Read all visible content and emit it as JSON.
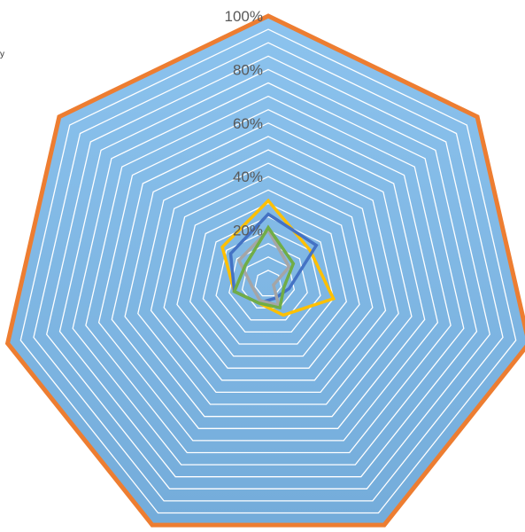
{
  "chart_data": {
    "type": "radar",
    "axes_count": 7,
    "rmax": 100,
    "grid_step": 5,
    "tick_labels": [
      "20%",
      "40%",
      "60%",
      "80%",
      "100%"
    ],
    "tick_values": [
      20,
      40,
      60,
      80,
      100
    ],
    "grid": true,
    "colors": {
      "fill": "#7FB6E0",
      "fill_top": "#8CC3EE",
      "fill_bottom": "#74ACDA",
      "gridline": "#FFFFFF",
      "orange": "#ED7D31",
      "blue": "#4472C4",
      "gray": "#A5A5A5",
      "yellow": "#FFC000",
      "green": "#70AD47"
    },
    "series": [
      {
        "color_key": "orange",
        "values": [
          100,
          100,
          100,
          100,
          100,
          100,
          100
        ]
      },
      {
        "color_key": "yellow",
        "values": [
          31,
          20,
          25,
          13,
          8,
          13,
          22
        ]
      },
      {
        "color_key": "blue",
        "values": [
          26,
          23,
          8,
          6,
          8,
          13,
          18
        ]
      },
      {
        "color_key": "gray",
        "values": [
          20,
          10,
          2,
          9,
          7,
          6,
          14
        ]
      },
      {
        "color_key": "green",
        "values": [
          21,
          12,
          6,
          10,
          8,
          13,
          11
        ]
      }
    ]
  },
  "legend_fragment": "y"
}
